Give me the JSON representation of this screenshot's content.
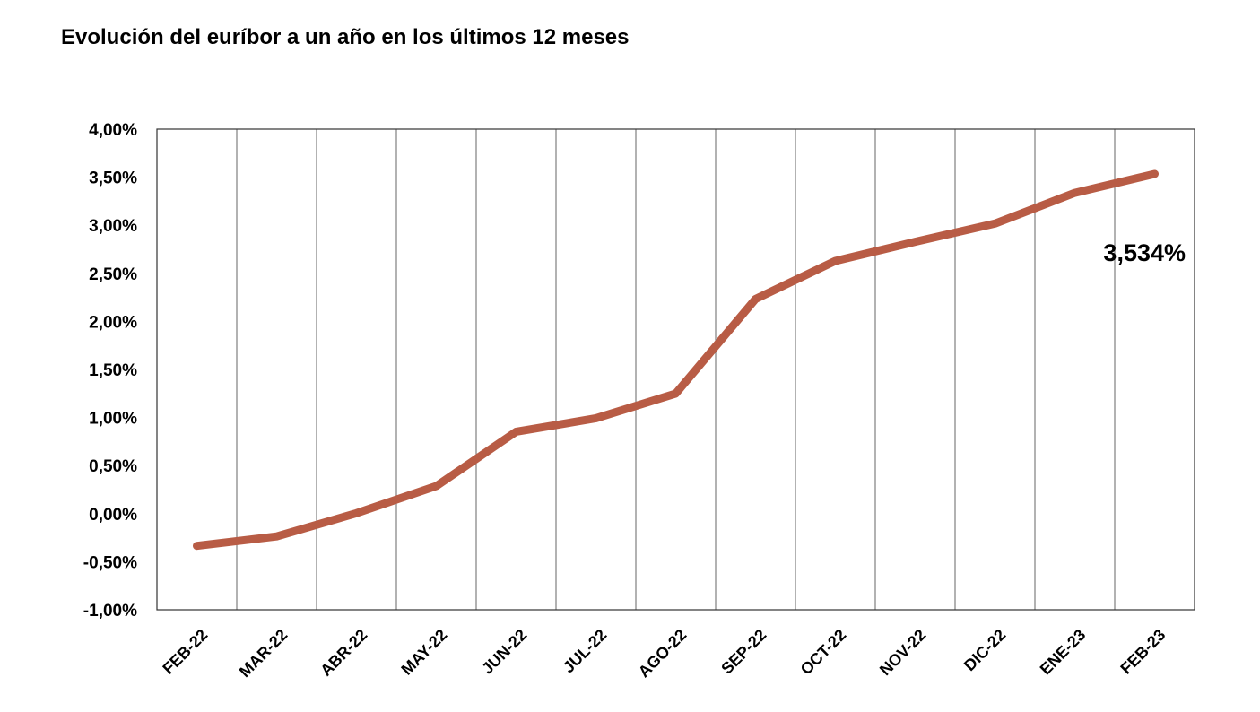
{
  "chart_data": {
    "type": "line",
    "title": "Evolución del euríbor a un año en los últimos 12 meses",
    "xlabel": "",
    "ylabel": "",
    "categories": [
      "FEB-22",
      "MAR-22",
      "ABR-22",
      "MAY-22",
      "JUN-22",
      "JUL-22",
      "AGO-22",
      "SEP-22",
      "OCT-22",
      "NOV-22",
      "DIC-22",
      "ENE-23",
      "FEB-23"
    ],
    "series": [
      {
        "values": [
          -0.335,
          -0.237,
          0.005,
          0.287,
          0.852,
          0.992,
          1.249,
          2.233,
          2.629,
          2.828,
          3.018,
          3.337,
          3.534
        ]
      }
    ],
    "ylim": [
      -1.0,
      4.0
    ],
    "yticks": [
      4.0,
      3.5,
      3.0,
      2.5,
      2.0,
      1.5,
      1.0,
      0.5,
      0.0,
      -0.5,
      -1.0
    ],
    "ytick_labels": [
      "4,00%",
      "3,50%",
      "3,00%",
      "2,50%",
      "2,00%",
      "1,50%",
      "1,00%",
      "0,50%",
      "0,00%",
      "-0,50%",
      "-1,00%"
    ],
    "annotation": "3,534%",
    "line_color": "#b85c45",
    "grid": "vertical"
  }
}
